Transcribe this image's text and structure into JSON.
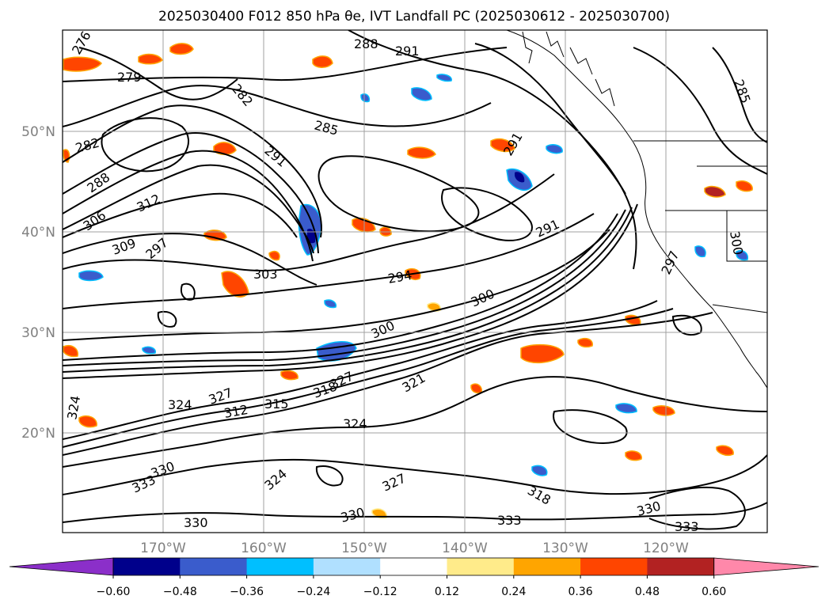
{
  "title": "2025030400 F012 850 hPa θe, IVT Landfall PC (2025030612 - 2025030700)",
  "map": {
    "lon_labels": [
      "170°W",
      "160°W",
      "150°W",
      "140°W",
      "130°W",
      "120°W"
    ],
    "lat_labels": [
      "50°N",
      "40°N",
      "30°N",
      "20°N"
    ]
  },
  "contour_labels": [
    "276",
    "279",
    "282",
    "282",
    "285",
    "288",
    "288",
    "291",
    "291",
    "291",
    "291",
    "285",
    "294",
    "297",
    "297",
    "300",
    "303",
    "306",
    "309",
    "312",
    "312",
    "315",
    "318",
    "318",
    "321",
    "324",
    "324",
    "324",
    "324",
    "327",
    "327",
    "327",
    "330",
    "330",
    "330",
    "330",
    "333",
    "333",
    "333",
    "300",
    "300"
  ],
  "colorbar": {
    "ticks": [
      "−0.60",
      "−0.48",
      "−0.36",
      "−0.24",
      "−0.12",
      "0.12",
      "0.24",
      "0.36",
      "0.48",
      "0.60"
    ],
    "colors": [
      "#8b2fc9",
      "#00008b",
      "#3a5ccc",
      "#00bfff",
      "#b0e0ff",
      "#ffffff",
      "#ffeb8a",
      "#ffa500",
      "#ff4500",
      "#b22222",
      "#ff88aa"
    ]
  }
}
